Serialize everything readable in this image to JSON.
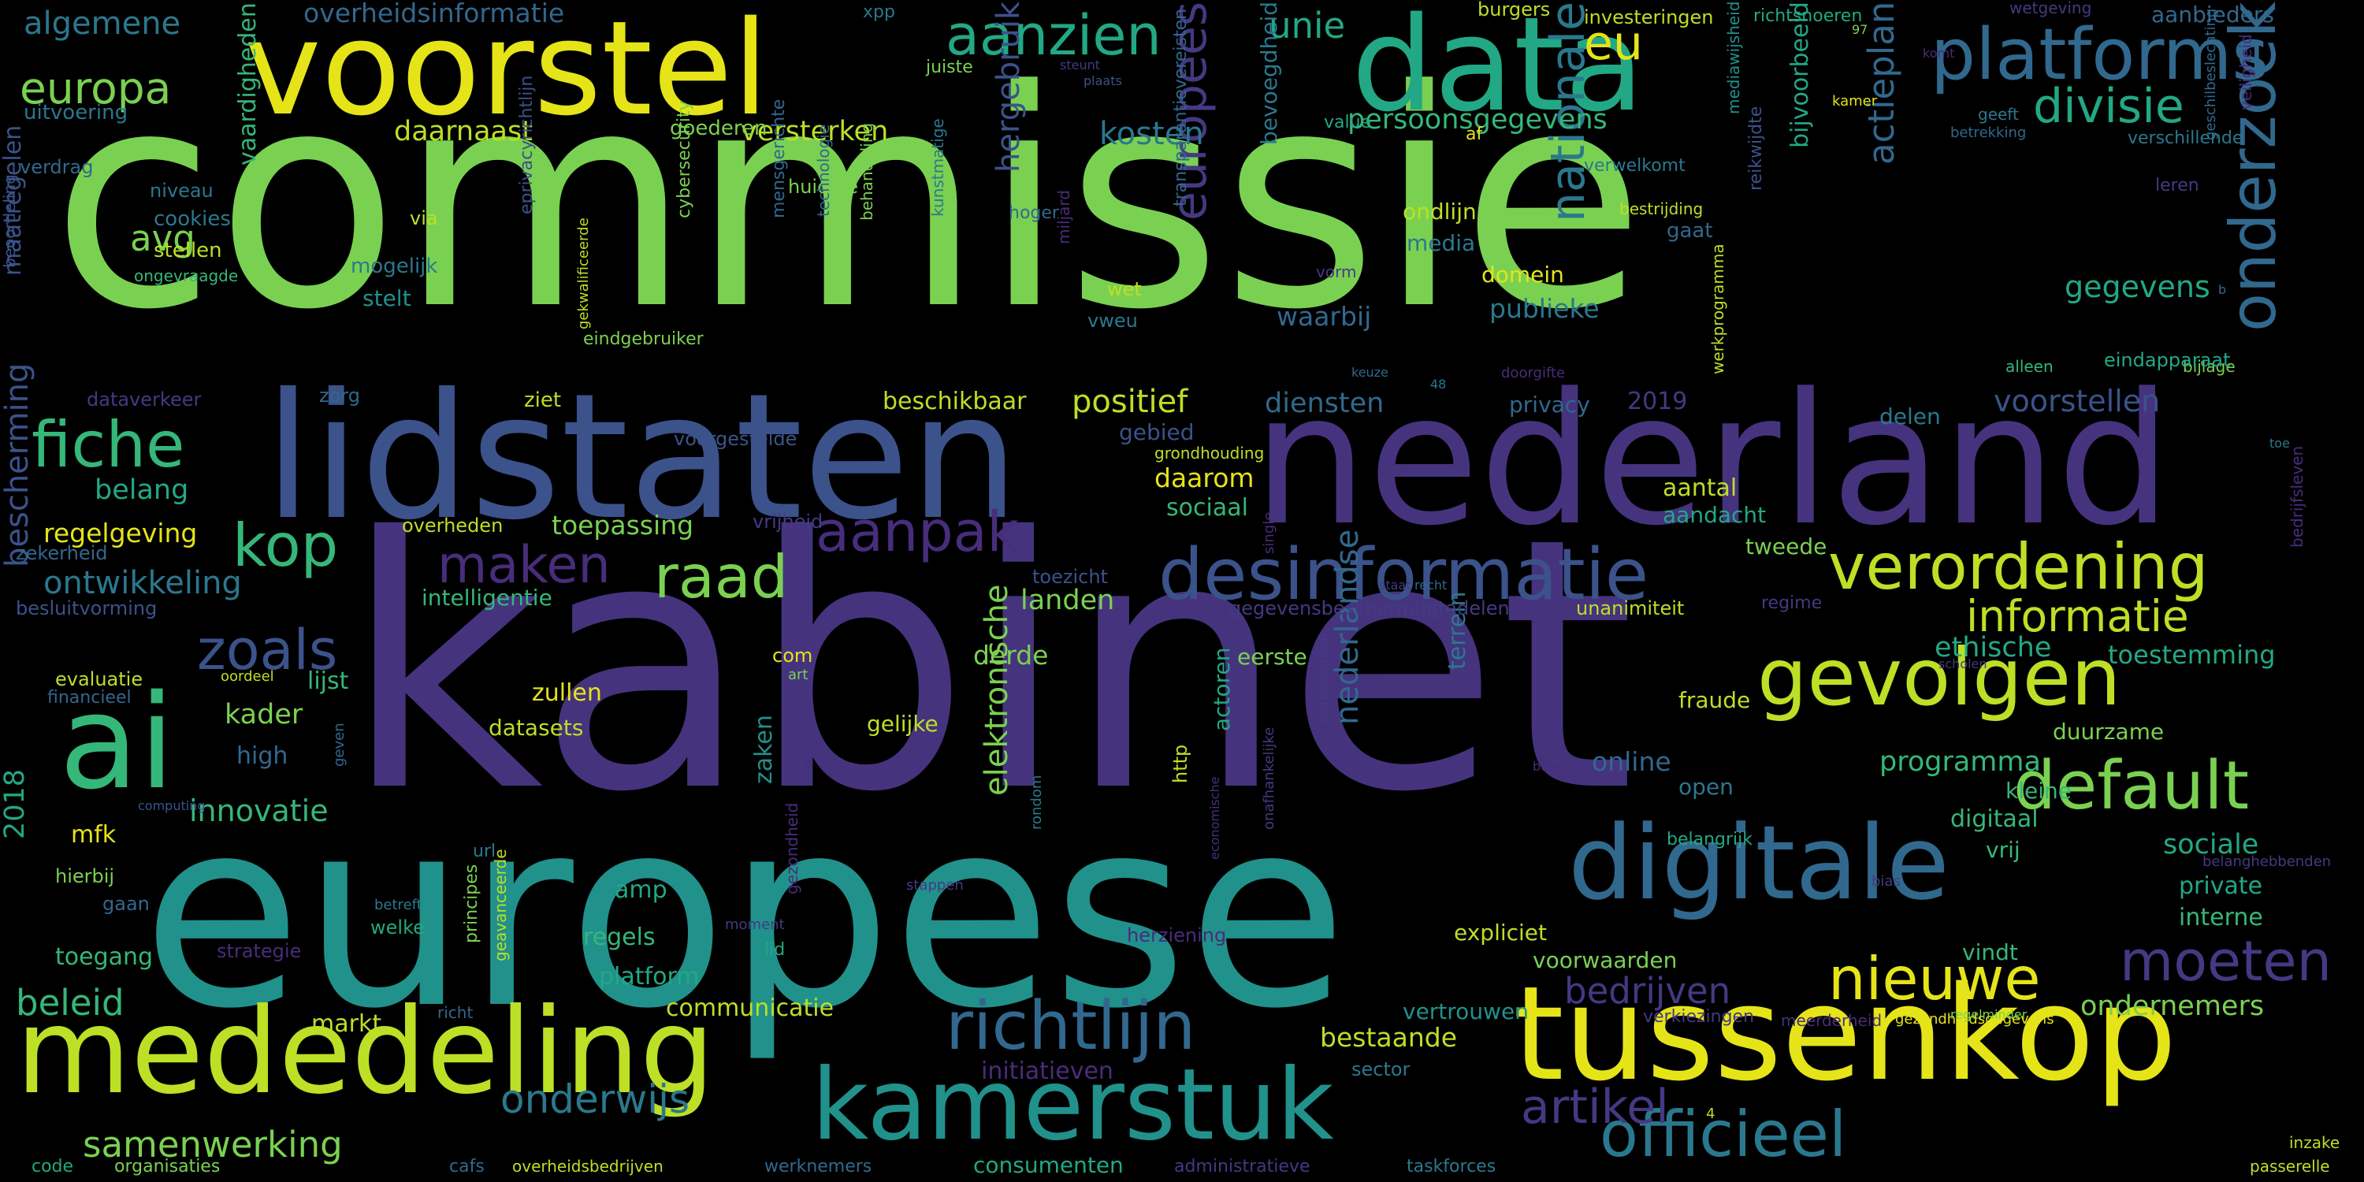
{
  "cloud": {
    "background": "#000000",
    "palette": "viridis",
    "words": [
      {
        "text": "commissie",
        "color": "#7ad151"
      },
      {
        "text": "kabinet",
        "color": "#46337e"
      },
      {
        "text": "europese",
        "color": "#21918c"
      },
      {
        "text": "nederland",
        "color": "#46337e"
      },
      {
        "text": "lidstaten",
        "color": "#3b528b"
      },
      {
        "text": "data",
        "color": "#22a884"
      },
      {
        "text": "voorstel",
        "color": "#e5e419"
      },
      {
        "text": "tussenkop",
        "color": "#e5e419"
      },
      {
        "text": "mededeling",
        "color": "#bddf26"
      },
      {
        "text": "digitale",
        "color": "#31688e"
      },
      {
        "text": "kamerstuk",
        "color": "#21918c"
      },
      {
        "text": "ai",
        "color": "#35b779"
      },
      {
        "text": "gevolgen",
        "color": "#bddf26"
      },
      {
        "text": "desinformatie",
        "color": "#3b528b"
      },
      {
        "text": "platforms",
        "color": "#31688e"
      },
      {
        "text": "verordening",
        "color": "#bddf26"
      },
      {
        "text": "richtlijn",
        "color": "#31688e"
      },
      {
        "text": "officieel",
        "color": "#2a788e"
      },
      {
        "text": "default",
        "color": "#7ad151"
      },
      {
        "text": "aanpak",
        "color": "#472d7b"
      },
      {
        "text": "raad",
        "color": "#7ad151"
      },
      {
        "text": "moeten",
        "color": "#443983"
      },
      {
        "text": "nieuwe",
        "color": "#e5e419"
      },
      {
        "text": "fiche",
        "color": "#35b779"
      },
      {
        "text": "kop",
        "color": "#35b779"
      },
      {
        "text": "maken",
        "color": "#472d7b"
      },
      {
        "text": "zoals",
        "color": "#3b528b"
      },
      {
        "text": "aanzien",
        "color": "#22a884"
      },
      {
        "text": "europa",
        "color": "#7ad151"
      },
      {
        "text": "eu",
        "color": "#e5e419"
      },
      {
        "text": "divisie",
        "color": "#22a884"
      },
      {
        "text": "informatie",
        "color": "#bddf26"
      },
      {
        "text": "artikel",
        "color": "#443983"
      },
      {
        "text": "bedrijven",
        "color": "#443983"
      },
      {
        "text": "onderwijs",
        "color": "#2a788e"
      },
      {
        "text": "beleid",
        "color": "#35b779"
      },
      {
        "text": "samenwerking",
        "color": "#7ad151"
      },
      {
        "text": "onderzoek",
        "color": "#31688e"
      },
      {
        "text": "actieplan",
        "color": "#31688e"
      },
      {
        "text": "nationale",
        "color": "#2a788e"
      },
      {
        "text": "europees",
        "color": "#443983"
      },
      {
        "text": "hergebruik",
        "color": "#3b528b"
      },
      {
        "text": "nederlandse",
        "color": "#31688e"
      },
      {
        "text": "elektronische",
        "color": "#7ad151"
      },
      {
        "text": "kosten",
        "color": "#2a788e"
      },
      {
        "text": "unie",
        "color": "#22a884"
      },
      {
        "text": "algemene",
        "color": "#2a788e"
      },
      {
        "text": "overheidsinformatie",
        "color": "#31688e"
      },
      {
        "text": "daarnaast",
        "color": "#bddf26"
      },
      {
        "text": "versterken",
        "color": "#bddf26"
      },
      {
        "text": "persoonsgegevens",
        "color": "#35b779"
      },
      {
        "text": "avg",
        "color": "#7ad151"
      },
      {
        "text": "positief",
        "color": "#bddf26"
      },
      {
        "text": "bescherming",
        "color": "#3b528b"
      },
      {
        "text": "ontwikkeling",
        "color": "#2a788e"
      },
      {
        "text": "innovatie",
        "color": "#35b779"
      },
      {
        "text": "voorstellen",
        "color": "#3b528b"
      },
      {
        "text": "gegevens",
        "color": "#22a884"
      },
      {
        "text": "programma",
        "color": "#35b779"
      },
      {
        "text": "ethische",
        "color": "#22a884"
      },
      {
        "text": "toestemming",
        "color": "#22a884"
      },
      {
        "text": "sociale",
        "color": "#22a884"
      },
      {
        "text": "ondernemers",
        "color": "#7ad151"
      },
      {
        "text": "bestaande",
        "color": "#bddf26"
      },
      {
        "text": "initiatieven",
        "color": "#472d7b"
      },
      {
        "text": "consumenten",
        "color": "#22a884"
      },
      {
        "text": "communicatie",
        "color": "#bddf26"
      },
      {
        "text": "markt",
        "color": "#bddf26"
      },
      {
        "text": "landen",
        "color": "#7ad151"
      },
      {
        "text": "diensten",
        "color": "#31688e"
      },
      {
        "text": "2018",
        "color": "#22a884"
      },
      {
        "text": "kader",
        "color": "#7ad151"
      },
      {
        "text": "lijst",
        "color": "#35b779"
      },
      {
        "text": "belang",
        "color": "#22a884"
      },
      {
        "text": "regelgeving",
        "color": "#e5e419"
      },
      {
        "text": "toepassing",
        "color": "#7ad151"
      },
      {
        "text": "daarom",
        "color": "#e5e419"
      },
      {
        "text": "waarbij",
        "color": "#31688e"
      },
      {
        "text": "publieke",
        "color": "#2a788e"
      },
      {
        "text": "vaardigheden",
        "color": "#35b779"
      },
      {
        "text": "maatregelen",
        "color": "#3b528b"
      },
      {
        "text": "bevoegdheid",
        "color": "#2a788e"
      },
      {
        "text": "online",
        "color": "#31688e"
      },
      {
        "text": "terrein",
        "color": "#2a788e"
      },
      {
        "text": "zaken",
        "color": "#21918c"
      },
      {
        "text": "derde",
        "color": "#7ad151"
      },
      {
        "text": "sociaal",
        "color": "#35b779"
      },
      {
        "text": "digitaal",
        "color": "#35b779"
      },
      {
        "text": "interne",
        "color": "#35b779"
      },
      {
        "text": "private",
        "color": "#22a884"
      },
      {
        "text": "mfk",
        "color": "#e5e419"
      },
      {
        "text": "high",
        "color": "#31688e"
      },
      {
        "text": "amp",
        "color": "#22a884"
      },
      {
        "text": "regels",
        "color": "#35b779"
      },
      {
        "text": "platform",
        "color": "#22a884"
      },
      {
        "text": "toegang",
        "color": "#35b779"
      },
      {
        "text": "zullen",
        "color": "#e5e419"
      },
      {
        "text": "datasets",
        "color": "#bddf26"
      },
      {
        "text": "gelijke",
        "color": "#bddf26"
      },
      {
        "text": "eerste",
        "color": "#7ad151"
      },
      {
        "text": "fraude",
        "color": "#bddf26"
      },
      {
        "text": "open",
        "color": "#2a788e"
      },
      {
        "text": "vrij",
        "color": "#35b779"
      },
      {
        "text": "kleine",
        "color": "#35b779"
      },
      {
        "text": "duurzame",
        "color": "#7ad151"
      },
      {
        "text": "vertrouwen",
        "color": "#21918c"
      },
      {
        "text": "voorwaarden",
        "color": "#7ad151"
      },
      {
        "text": "expliciet",
        "color": "#bddf26"
      },
      {
        "text": "vindt",
        "color": "#35b779"
      },
      {
        "text": "beschikbaar",
        "color": "#bddf26"
      },
      {
        "text": "aantal",
        "color": "#bddf26"
      },
      {
        "text": "tweede",
        "color": "#7ad151"
      },
      {
        "text": "aandacht",
        "color": "#22a884"
      },
      {
        "text": "delen",
        "color": "#2a788e"
      },
      {
        "text": "privacy",
        "color": "#31688e"
      },
      {
        "text": "2019",
        "color": "#443983"
      },
      {
        "text": "gebied",
        "color": "#3b528b"
      },
      {
        "text": "media",
        "color": "#2a788e"
      },
      {
        "text": "domein",
        "color": "#e5e419"
      },
      {
        "text": "ondlijn",
        "color": "#bddf26"
      },
      {
        "text": "gaat",
        "color": "#31688e"
      },
      {
        "text": "vorm",
        "color": "#443983"
      },
      {
        "text": "vweu",
        "color": "#2a788e"
      },
      {
        "text": "wet",
        "color": "#bddf26"
      },
      {
        "text": "miljard",
        "color": "#472d7b"
      },
      {
        "text": "intelligentie",
        "color": "#35b779"
      },
      {
        "text": "datadelen",
        "color": "#443983"
      },
      {
        "text": "gegevensbescherming",
        "color": "#443983"
      },
      {
        "text": "unanimiteit",
        "color": "#bddf26"
      },
      {
        "text": "regime",
        "color": "#443983"
      },
      {
        "text": "toezicht",
        "color": "#3b528b"
      },
      {
        "text": "vrijheid",
        "color": "#443983"
      },
      {
        "text": "overheden",
        "color": "#bddf26"
      },
      {
        "text": "stellen",
        "color": "#bddf26"
      },
      {
        "text": "cookies",
        "color": "#2a788e"
      },
      {
        "text": "stelt",
        "color": "#21918c"
      },
      {
        "text": "mogelijk",
        "color": "#2a788e"
      },
      {
        "text": "via",
        "color": "#bddf26"
      },
      {
        "text": "zorg",
        "color": "#31688e"
      },
      {
        "text": "ziet",
        "color": "#bddf26"
      },
      {
        "text": "voorgestelde",
        "color": "#3b528b"
      },
      {
        "text": "dataverkeer",
        "color": "#443983"
      },
      {
        "text": "zekerheid",
        "color": "#31688e"
      },
      {
        "text": "besluitvorming",
        "color": "#3b528b"
      },
      {
        "text": "evaluatie",
        "color": "#bddf26"
      },
      {
        "text": "financieel",
        "color": "#31688e"
      },
      {
        "text": "hierbij",
        "color": "#7ad151"
      },
      {
        "text": "gaan",
        "color": "#31688e"
      },
      {
        "text": "code",
        "color": "#22a884"
      },
      {
        "text": "organisaties",
        "color": "#7ad151"
      },
      {
        "text": "overheidsbedrijven",
        "color": "#bddf26"
      },
      {
        "text": "cafs",
        "color": "#31688e"
      },
      {
        "text": "werknemers",
        "color": "#31688e"
      },
      {
        "text": "administratieve",
        "color": "#443983"
      },
      {
        "text": "taskforces",
        "color": "#2a788e"
      },
      {
        "text": "passerelle",
        "color": "#bddf26"
      },
      {
        "text": "inzake",
        "color": "#bddf26"
      },
      {
        "text": "verkiezingen",
        "color": "#443983"
      },
      {
        "text": "meerderheid",
        "color": "#472d7b"
      },
      {
        "text": "gezondheidsgegevens",
        "color": "#e5e419"
      },
      {
        "text": "herziening",
        "color": "#472d7b"
      },
      {
        "text": "sector",
        "color": "#2a788e"
      },
      {
        "text": "welke",
        "color": "#22a884"
      },
      {
        "text": "strategie",
        "color": "#472d7b"
      },
      {
        "text": "richt",
        "color": "#31688e"
      },
      {
        "text": "moment",
        "color": "#443983"
      },
      {
        "text": "lid",
        "color": "#22a884"
      },
      {
        "text": "url",
        "color": "#2a788e"
      },
      {
        "text": "betreft",
        "color": "#2a788e"
      },
      {
        "text": "principes",
        "color": "#7ad151"
      },
      {
        "text": "geavanceerde",
        "color": "#bddf26"
      },
      {
        "text": "gezondheid",
        "color": "#472d7b"
      },
      {
        "text": "stappen",
        "color": "#443983"
      },
      {
        "text": "economische",
        "color": "#472d7b"
      },
      {
        "text": "http",
        "color": "#bddf26"
      },
      {
        "text": "actoren",
        "color": "#22a884"
      },
      {
        "text": "rondom",
        "color": "#2a788e"
      },
      {
        "text": "onafhankelijke",
        "color": "#443983"
      },
      {
        "text": "performance",
        "color": "#443983"
      },
      {
        "text": "com",
        "color": "#e5e419"
      },
      {
        "text": "art",
        "color": "#7ad151"
      },
      {
        "text": "oordeel",
        "color": "#bddf26"
      },
      {
        "text": "geven",
        "color": "#31688e"
      },
      {
        "text": "computing",
        "color": "#3b528b"
      },
      {
        "text": "belangrijk",
        "color": "#22a884"
      },
      {
        "text": "belanghebbenden",
        "color": "#443983"
      },
      {
        "text": "scholen",
        "color": "#443983"
      },
      {
        "text": "beter",
        "color": "#472d7b"
      },
      {
        "text": "bias",
        "color": "#443983"
      },
      {
        "text": "regelminder",
        "color": "#7ad151"
      },
      {
        "text": "recht",
        "color": "#31688e"
      },
      {
        "text": "staat",
        "color": "#443983"
      },
      {
        "text": "single",
        "color": "#472d7b"
      },
      {
        "text": "werkprogramma",
        "color": "#bddf26"
      },
      {
        "text": "grondhouding",
        "color": "#bddf26"
      },
      {
        "text": "toe",
        "color": "#2a788e"
      },
      {
        "text": "doorgifte",
        "color": "#472d7b"
      },
      {
        "text": "48",
        "color": "#2a788e"
      },
      {
        "text": "keuze",
        "color": "#31688e"
      },
      {
        "text": "alleen",
        "color": "#35b779"
      },
      {
        "text": "bijlage",
        "color": "#7ad151"
      },
      {
        "text": "eindapparaat",
        "color": "#22a884"
      },
      {
        "text": "veiligheid",
        "color": "#472d7b"
      },
      {
        "text": "geschilbeslechting",
        "color": "#31688e"
      },
      {
        "text": "leren",
        "color": "#443983"
      },
      {
        "text": "verschillende",
        "color": "#2a788e"
      },
      {
        "text": "aanbieders",
        "color": "#31688e"
      },
      {
        "text": "wetgeving",
        "color": "#443983"
      },
      {
        "text": "bedrijfsleven",
        "color": "#472d7b"
      },
      {
        "text": "burgers",
        "color": "#bddf26"
      },
      {
        "text": "investeringen",
        "color": "#bddf26"
      },
      {
        "text": "richtsnoeren",
        "color": "#22a884"
      },
      {
        "text": "97",
        "color": "#7ad151"
      },
      {
        "text": "komt",
        "color": "#472d7b"
      },
      {
        "text": "kamer",
        "color": "#e5e419"
      },
      {
        "text": "mediawijsheid",
        "color": "#21918c"
      },
      {
        "text": "bijvoorbeeld",
        "color": "#22a884"
      },
      {
        "text": "reikwijdte",
        "color": "#3b528b"
      },
      {
        "text": "betrekking",
        "color": "#31688e"
      },
      {
        "text": "geeft",
        "color": "#2a788e"
      },
      {
        "text": "bestrijding",
        "color": "#bddf26"
      },
      {
        "text": "verwelkomt",
        "color": "#2a788e"
      },
      {
        "text": "value",
        "color": "#22a884"
      },
      {
        "text": "af",
        "color": "#e5e419"
      },
      {
        "text": "transparantievereisten",
        "color": "#31688e"
      },
      {
        "text": "plaats",
        "color": "#3b528b"
      },
      {
        "text": "steunt",
        "color": "#443983"
      },
      {
        "text": "juiste",
        "color": "#7ad151"
      },
      {
        "text": "goederen",
        "color": "#7ad151"
      },
      {
        "text": "hoger",
        "color": "#31688e"
      },
      {
        "text": "xpp",
        "color": "#2a788e"
      },
      {
        "text": "uitvoering",
        "color": "#2a788e"
      },
      {
        "text": "verdrag",
        "color": "#31688e"
      },
      {
        "text": "niveau",
        "color": "#2a788e"
      },
      {
        "text": "huidige",
        "color": "#7ad151"
      },
      {
        "text": "beoordeling",
        "color": "#3b528b"
      },
      {
        "text": "ongevraagde",
        "color": "#35b779"
      },
      {
        "text": "eprivacyrichtlijn",
        "color": "#3b528b"
      },
      {
        "text": "eindgebruiker",
        "color": "#7ad151"
      },
      {
        "text": "gekwalificeerde",
        "color": "#bddf26"
      },
      {
        "text": "cybersecurity",
        "color": "#7ad151"
      },
      {
        "text": "mensgerichte",
        "color": "#31688e"
      },
      {
        "text": "technologie",
        "color": "#31688e"
      },
      {
        "text": "behandeling",
        "color": "#7ad151"
      },
      {
        "text": "kunstmatige",
        "color": "#2a788e"
      },
      {
        "text": "a",
        "color": "#472d7b"
      },
      {
        "text": "4",
        "color": "#bddf26"
      },
      {
        "text": "b",
        "color": "#31688e"
      }
    ]
  }
}
